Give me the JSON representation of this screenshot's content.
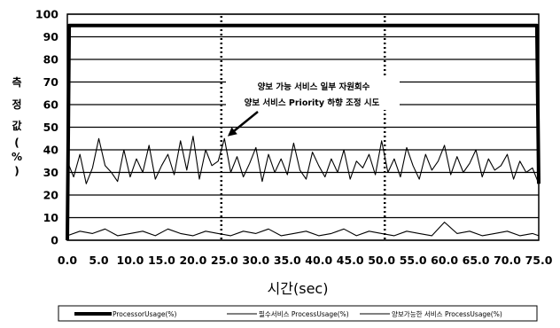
{
  "chart_data": {
    "type": "line",
    "xlabel": "시간(sec)",
    "ylabel": "측정값(%)",
    "ylabel_chars": [
      "측",
      "정",
      "값",
      "(",
      "%",
      ")"
    ],
    "ylim": [
      0,
      100
    ],
    "xlim": [
      0,
      75
    ],
    "yticks": [
      "0",
      "10",
      "20",
      "30",
      "40",
      "50",
      "60",
      "70",
      "80",
      "90",
      "100"
    ],
    "xticks": [
      "0.0",
      "5.0",
      "10.0",
      "15.0",
      "20.0",
      "25.0",
      "30.0",
      "35.0",
      "40.0",
      "45.0",
      "50.0",
      "55.0",
      "60.0",
      "65.0",
      "70.0",
      "75.0"
    ],
    "grid": true,
    "legend_position": "bottom",
    "annotation": {
      "lines": [
        "양보 가능 서비스 일부 자원회수",
        "양보 서비스 Priority 하향 조정 시도"
      ],
      "arrow_target": [
        25.5,
        46
      ]
    },
    "vlines": [
      24.5,
      50.5
    ],
    "series": [
      {
        "name": "ProcessorUsage(%)",
        "style": "thick",
        "x": [
          0,
          0.3,
          1,
          74.7,
          75
        ],
        "values": [
          0,
          95,
          95,
          95,
          25
        ]
      },
      {
        "name": "필수서비스 ProcessUsage(%)",
        "style": "thin",
        "x": [
          0,
          1,
          2,
          3,
          4,
          5,
          6,
          7,
          8,
          9,
          10,
          11,
          12,
          13,
          14,
          15,
          16,
          17,
          18,
          19,
          20,
          21,
          22,
          23,
          24,
          25,
          26,
          27,
          28,
          29,
          30,
          31,
          32,
          33,
          34,
          35,
          36,
          37,
          38,
          39,
          40,
          41,
          42,
          43,
          44,
          45,
          46,
          47,
          48,
          49,
          50,
          51,
          52,
          53,
          54,
          55,
          56,
          57,
          58,
          59,
          60,
          61,
          62,
          63,
          64,
          65,
          66,
          67,
          68,
          69,
          70,
          71,
          72,
          73,
          74,
          75
        ],
        "values": [
          35,
          28,
          38,
          25,
          32,
          45,
          33,
          30,
          26,
          40,
          28,
          36,
          30,
          42,
          27,
          33,
          38,
          29,
          44,
          31,
          46,
          27,
          40,
          33,
          35,
          45,
          30,
          37,
          28,
          34,
          41,
          26,
          38,
          30,
          36,
          29,
          43,
          31,
          27,
          39,
          33,
          28,
          36,
          30,
          40,
          27,
          35,
          32,
          38,
          29,
          44,
          30,
          36,
          28,
          41,
          33,
          27,
          38,
          31,
          35,
          42,
          29,
          37,
          30,
          34,
          40,
          28,
          36,
          31,
          33,
          38,
          27,
          35,
          30,
          32,
          25
        ]
      },
      {
        "name": "양보가능한 서비스 ProcessUsage(%)",
        "style": "thin",
        "x": [
          0,
          2,
          4,
          6,
          8,
          10,
          12,
          14,
          16,
          18,
          20,
          22,
          24,
          26,
          28,
          30,
          32,
          34,
          36,
          38,
          40,
          42,
          44,
          46,
          48,
          50,
          52,
          54,
          56,
          58,
          60,
          62,
          64,
          66,
          68,
          70,
          72,
          74,
          75
        ],
        "values": [
          2,
          4,
          3,
          5,
          2,
          3,
          4,
          2,
          5,
          3,
          2,
          4,
          3,
          2,
          4,
          3,
          5,
          2,
          3,
          4,
          2,
          3,
          5,
          2,
          4,
          3,
          2,
          4,
          3,
          2,
          8,
          3,
          4,
          2,
          3,
          4,
          2,
          3,
          2
        ]
      }
    ]
  }
}
